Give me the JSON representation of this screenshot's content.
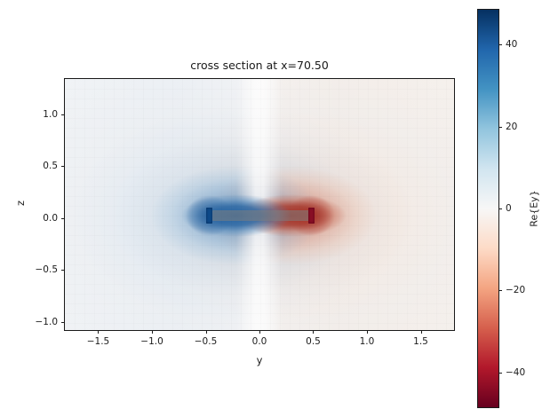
{
  "figure": {
    "background": "#ffffff",
    "text_color": "#1a1a1a"
  },
  "chart_data": {
    "type": "heatmap",
    "title": "cross section at x=70.50",
    "xlabel": "y",
    "ylabel": "z",
    "xlim": [
      -1.81,
      1.81
    ],
    "ylim": [
      -1.08,
      1.34
    ],
    "x_ticks": [
      -1.5,
      -1.0,
      -0.5,
      0.0,
      0.5,
      1.0,
      1.5
    ],
    "x_tick_labels": [
      "−1.5",
      "−1.0",
      "−0.5",
      "0.0",
      "0.5",
      "1.0",
      "1.5"
    ],
    "y_ticks": [
      1.0,
      0.5,
      0.0,
      -0.5,
      -1.0
    ],
    "y_tick_labels": [
      "1.0",
      "0.5",
      "0.0",
      "−0.5",
      "−1.0"
    ],
    "grid": false,
    "legend": "none",
    "colormap": "RdBu",
    "colormap_stops": [
      "#053061",
      "#2166ac",
      "#4393c3",
      "#92c5de",
      "#d1e5f0",
      "#f7f7f7",
      "#fddbc7",
      "#f4a582",
      "#d6604d",
      "#b2182b",
      "#67001f"
    ],
    "clim": [
      -48.5,
      48.5
    ],
    "colorbar": {
      "label": "Re{Ey}",
      "ticks": [
        40,
        20,
        0,
        -20,
        -40
      ],
      "tick_labels": [
        "40",
        "20",
        "0",
        "−20",
        "−40"
      ],
      "position": "right"
    },
    "features": {
      "description": "Re{Ey} field slice of a horizontal dipole: positive (blue) lobe on the left half, negative (red) lobe on the right half, antisymmetric about y=0, decaying radially; coarse non-uniform grid pixelation visible.",
      "positive_lobe": {
        "center_y": -0.3,
        "center_z": 0.04,
        "peak_value": 48
      },
      "negative_lobe": {
        "center_y": 0.3,
        "center_z": 0.04,
        "peak_value": -48
      },
      "conductor_bar": {
        "y_extent": [
          -0.43,
          0.48
        ],
        "z_extent": [
          -0.02,
          0.08
        ],
        "appearance": "translucent gray"
      },
      "left_feed_cap": {
        "y": -0.47,
        "z": 0.03,
        "appearance": "dark blue",
        "hex": "#0e4a8a"
      },
      "right_feed_cap": {
        "y": 0.47,
        "z": 0.03,
        "appearance": "dark red",
        "hex": "#8a0f26"
      }
    }
  }
}
